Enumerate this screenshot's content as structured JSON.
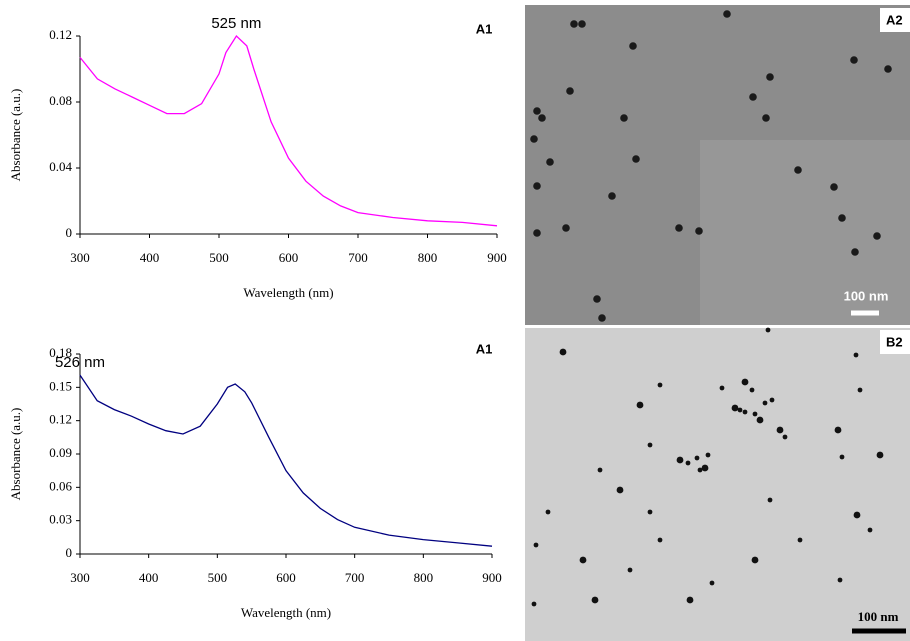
{
  "chart_data": [
    {
      "type": "line",
      "x_label": "Wavelength (nm)",
      "y_label": "Absorbance (a.u.)",
      "annotation": "525 nm",
      "panel_label": "A1",
      "color": "#ff00ff",
      "x": [
        300,
        325,
        350,
        375,
        400,
        425,
        450,
        475,
        500,
        510,
        525,
        540,
        550,
        575,
        600,
        625,
        650,
        675,
        700,
        750,
        800,
        850,
        900
      ],
      "values": [
        0.107,
        0.094,
        0.088,
        0.083,
        0.078,
        0.073,
        0.073,
        0.079,
        0.097,
        0.11,
        0.12,
        0.114,
        0.1,
        0.068,
        0.046,
        0.032,
        0.023,
        0.017,
        0.013,
        0.01,
        0.008,
        0.007,
        0.005
      ],
      "xlim": [
        300,
        900
      ],
      "xticks": [
        300,
        400,
        500,
        600,
        700,
        800,
        900
      ],
      "ylim": [
        0,
        0.12
      ],
      "yticks": [
        0,
        0.04,
        0.08,
        0.12
      ]
    },
    {
      "type": "line",
      "x_label": "Wavelength (nm)",
      "y_label": "Absorbance (a.u.)",
      "annotation": "526 nm",
      "panel_label": "A1",
      "color": "#000080",
      "x": [
        300,
        325,
        350,
        375,
        400,
        425,
        450,
        475,
        500,
        515,
        526,
        540,
        550,
        575,
        600,
        625,
        650,
        675,
        700,
        750,
        800,
        850,
        900
      ],
      "values": [
        0.161,
        0.138,
        0.13,
        0.124,
        0.117,
        0.111,
        0.108,
        0.115,
        0.135,
        0.15,
        0.153,
        0.146,
        0.136,
        0.105,
        0.075,
        0.055,
        0.041,
        0.031,
        0.024,
        0.017,
        0.013,
        0.01,
        0.007
      ],
      "xlim": [
        300,
        900
      ],
      "xticks": [
        300,
        400,
        500,
        600,
        700,
        800,
        900
      ],
      "ylim": [
        0,
        0.18
      ],
      "yticks": [
        0,
        0.03,
        0.06,
        0.09,
        0.12,
        0.15,
        0.18
      ]
    }
  ],
  "images": [
    {
      "label": "A2",
      "scale_bar": "100 nm"
    },
    {
      "label": "B2",
      "scale_bar": "100 nm"
    }
  ]
}
